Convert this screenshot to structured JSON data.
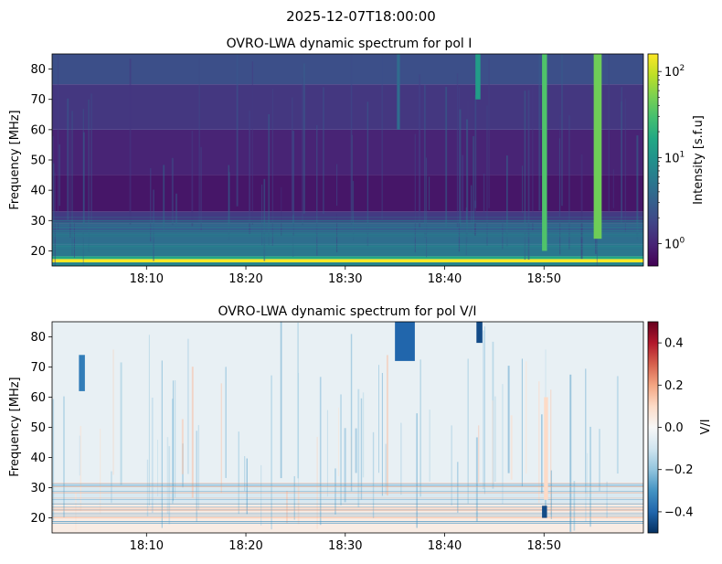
{
  "suptitle": "2025-12-07T18:00:00",
  "colors": {
    "viridis": [
      "#440154",
      "#482475",
      "#414487",
      "#355f8d",
      "#2a788e",
      "#21918c",
      "#22a884",
      "#44bf70",
      "#7ad151",
      "#bddf26",
      "#fde725"
    ],
    "rdbu_r": [
      "#053061",
      "#2166ac",
      "#4393c3",
      "#92c5de",
      "#d1e5f0",
      "#f7f7f7",
      "#fddbc7",
      "#f4a582",
      "#d6604d",
      "#b2182b",
      "#67001f"
    ]
  },
  "chart_data": [
    {
      "type": "heatmap",
      "title": "OVRO-LWA dynamic spectrum for pol I",
      "xlabel": "",
      "ylabel": "Frequency [MHz]",
      "xlim_minutes": [
        0.5,
        60
      ],
      "ylim": [
        15,
        85
      ],
      "x_ticks": [
        {
          "value": 10,
          "label": "18:10"
        },
        {
          "value": 20,
          "label": "18:20"
        },
        {
          "value": 30,
          "label": "18:30"
        },
        {
          "value": 40,
          "label": "18:40"
        },
        {
          "value": 50,
          "label": "18:50"
        }
      ],
      "y_ticks": [
        20,
        30,
        40,
        50,
        60,
        70,
        80
      ],
      "colorbar": {
        "label": "Intensity [s.f.u]",
        "scale": "log",
        "range": [
          0.55,
          160
        ],
        "colormap": "viridis",
        "ticks": [
          {
            "value": 1,
            "base": "10",
            "exp": "0"
          },
          {
            "value": 10,
            "base": "10",
            "exp": "1"
          },
          {
            "value": 100,
            "base": "10",
            "exp": "2"
          }
        ]
      },
      "bands": [
        {
          "f0": 15,
          "f1": 16.2,
          "v": 0.45
        },
        {
          "f0": 16.2,
          "f1": 17.3,
          "v": 1.0
        },
        {
          "f0": 17.3,
          "f1": 18.2,
          "v": 0.6
        },
        {
          "f0": 18.2,
          "f1": 22,
          "v": 0.4
        },
        {
          "f0": 22,
          "f1": 26,
          "v": 0.36
        },
        {
          "f0": 26,
          "f1": 29,
          "v": 0.3
        },
        {
          "f0": 29,
          "f1": 33,
          "v": 0.17
        },
        {
          "f0": 33,
          "f1": 45,
          "v": 0.06
        },
        {
          "f0": 45,
          "f1": 60,
          "v": 0.1
        },
        {
          "f0": 60,
          "f1": 75,
          "v": 0.16
        },
        {
          "f0": 75,
          "f1": 85,
          "v": 0.24
        }
      ],
      "bursts": [
        {
          "t0": 49.8,
          "t1": 50.3,
          "f0": 20,
          "f1": 85,
          "v": 0.72
        },
        {
          "t0": 55.0,
          "t1": 55.8,
          "f0": 24,
          "f1": 85,
          "v": 0.78
        },
        {
          "t0": 43.1,
          "t1": 43.6,
          "f0": 70,
          "f1": 85,
          "v": 0.55
        },
        {
          "t0": 35.2,
          "t1": 35.5,
          "f0": 60,
          "f1": 85,
          "v": 0.35
        }
      ]
    },
    {
      "type": "heatmap",
      "title": "OVRO-LWA dynamic spectrum for pol V/I",
      "xlabel": "",
      "ylabel": "Frequency [MHz]",
      "xlim_minutes": [
        0.5,
        60
      ],
      "ylim": [
        15,
        85
      ],
      "x_ticks": [
        {
          "value": 10,
          "label": "18:10"
        },
        {
          "value": 20,
          "label": "18:20"
        },
        {
          "value": 30,
          "label": "18:30"
        },
        {
          "value": 40,
          "label": "18:40"
        },
        {
          "value": 50,
          "label": "18:50"
        }
      ],
      "y_ticks": [
        20,
        30,
        40,
        50,
        60,
        70,
        80
      ],
      "colorbar": {
        "label": "V/I",
        "scale": "linear",
        "range": [
          -0.5,
          0.5
        ],
        "colormap": "rdbu_r",
        "ticks": [
          {
            "value": 0.4,
            "label": "0.4"
          },
          {
            "value": 0.2,
            "label": "0.2"
          },
          {
            "value": 0.0,
            "label": "0.0"
          },
          {
            "value": -0.2,
            "label": "−0.2"
          },
          {
            "value": -0.4,
            "label": "−0.4"
          }
        ]
      },
      "bands": [
        {
          "f0": 15,
          "f1": 25,
          "v": 0.04
        },
        {
          "f0": 25,
          "f1": 31,
          "v": -0.08
        },
        {
          "f0": 31,
          "f1": 85,
          "v": -0.04
        }
      ],
      "bursts": [
        {
          "t0": 3.2,
          "t1": 3.8,
          "f0": 62,
          "f1": 74,
          "v": -0.35
        },
        {
          "t0": 35.0,
          "t1": 37.0,
          "f0": 72,
          "f1": 85,
          "v": -0.4
        },
        {
          "t0": 43.2,
          "t1": 43.8,
          "f0": 78,
          "f1": 85,
          "v": -0.45
        },
        {
          "t0": 49.8,
          "t1": 50.3,
          "f0": 20,
          "f1": 24,
          "v": -0.45
        },
        {
          "t0": 50.0,
          "t1": 50.4,
          "f0": 26,
          "f1": 60,
          "v": 0.1
        }
      ]
    }
  ]
}
